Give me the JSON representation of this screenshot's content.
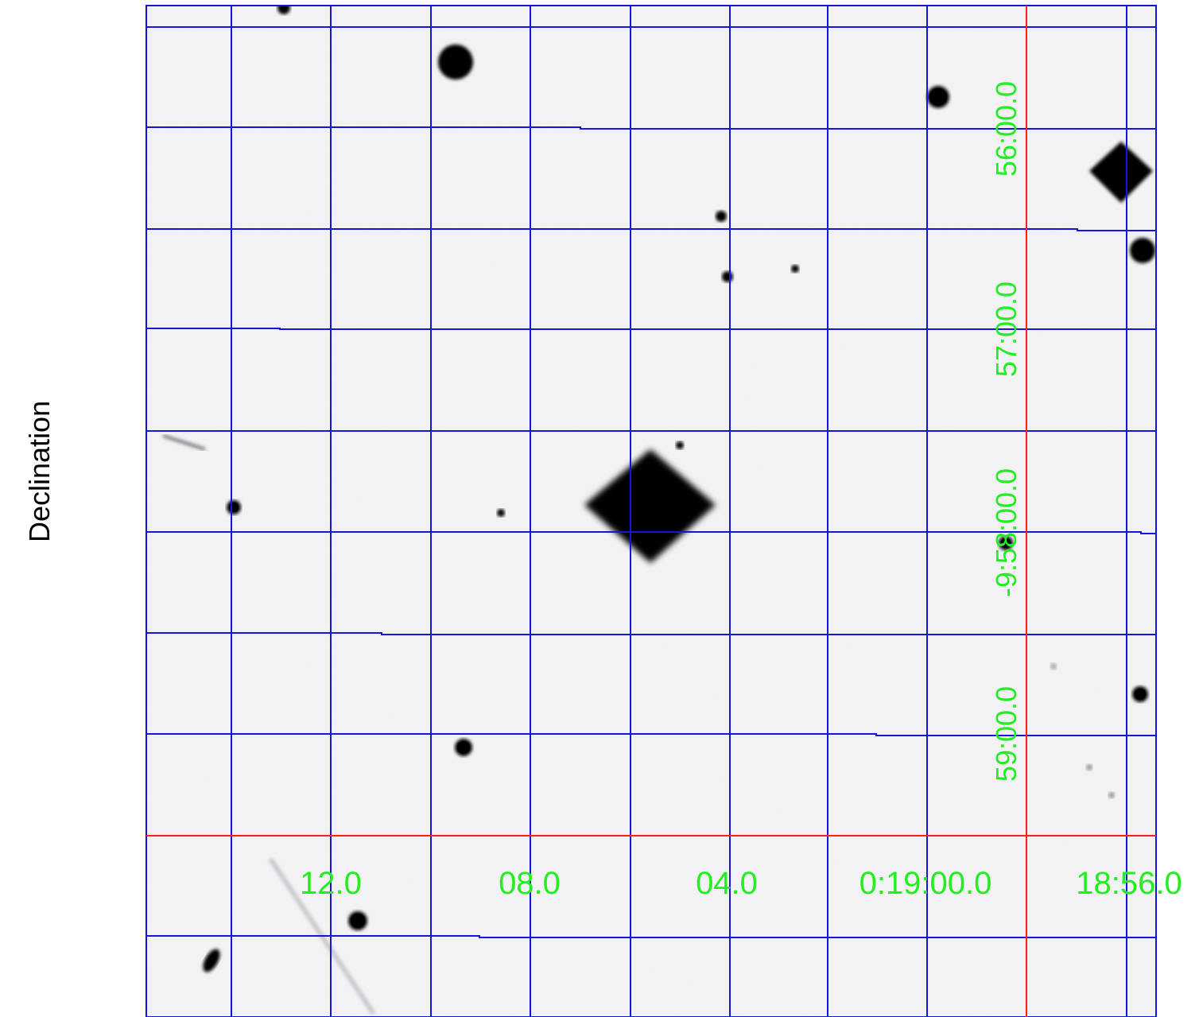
{
  "axis": {
    "ylabel": "Declination"
  },
  "ra_labels": [
    "12.0",
    "08.0",
    "04.0",
    "0:19:00.0",
    "18:56.0"
  ],
  "dec_labels": [
    "56:00.0",
    "57:00.0",
    "-9:58:00.0",
    "59:00.0"
  ],
  "colors": {
    "background": "#f3f3f5",
    "grid": "#1414e0",
    "reference_lines": "#ff2020",
    "labels": "#22ee22",
    "stars": "#000000"
  },
  "icons": [
    "star-icon",
    "diffraction-spike-icon"
  ]
}
